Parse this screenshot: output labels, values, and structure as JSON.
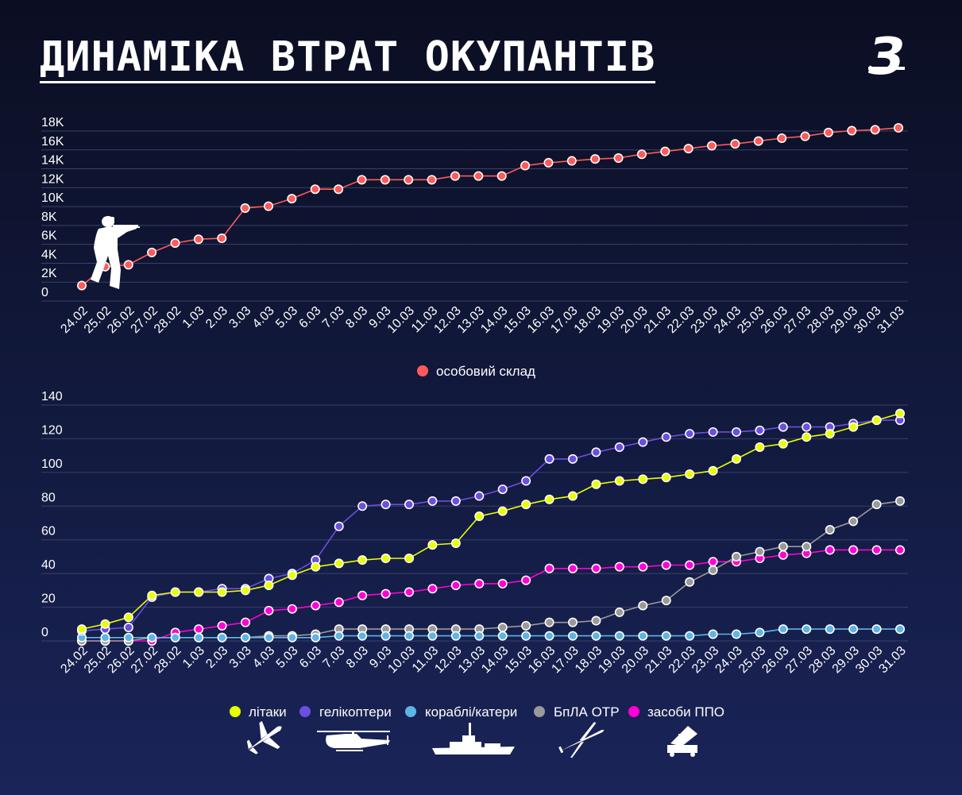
{
  "title": "ДИНАМІКА ВТРАТ ОКУПАНТІВ",
  "logo": "З",
  "colors": {
    "personnel": "#ff5a5a",
    "aircraft": "#e8ff00",
    "helicopters": "#6a4fe0",
    "ships": "#5fb4e6",
    "uav": "#9a9a9a",
    "air_defense": "#ff00d6",
    "grid": "#3a4068"
  },
  "chart_data": [
    {
      "type": "line",
      "x": [
        "24.02",
        "25.02",
        "26.02",
        "27.02",
        "28.02",
        "1.03",
        "2.03",
        "3.03",
        "4.03",
        "5.03",
        "6.03",
        "7.03",
        "8.03",
        "9.03",
        "10.03",
        "11.03",
        "12.03",
        "13.03",
        "14.03",
        "15.03",
        "16.03",
        "17.03",
        "18.03",
        "19.03",
        "20.03",
        "21.03",
        "22.03",
        "23.03",
        "24.03",
        "25.03",
        "26.03",
        "27.03",
        "28.03",
        "29.03",
        "30.03",
        "31.03"
      ],
      "ylim": [
        0,
        18000
      ],
      "yticks": [
        "0",
        "2K",
        "4K",
        "6K",
        "8K",
        "10K",
        "12K",
        "14K",
        "16K",
        "18K"
      ],
      "ytick_values": [
        0,
        2000,
        4000,
        6000,
        8000,
        10000,
        12000,
        14000,
        16000,
        18000
      ],
      "series": [
        {
          "name": "особовий склад",
          "color_key": "personnel",
          "values": [
            800,
            2800,
            3000,
            4300,
            5300,
            5700,
            5800,
            9000,
            9200,
            10000,
            11000,
            11000,
            12000,
            12000,
            12000,
            12000,
            12400,
            12400,
            12400,
            13500,
            13800,
            14000,
            14200,
            14300,
            14700,
            15000,
            15300,
            15600,
            15800,
            16100,
            16400,
            16600,
            17000,
            17200,
            17300,
            17500
          ]
        }
      ]
    },
    {
      "type": "line",
      "x": [
        "24.02",
        "25.02",
        "26.02",
        "27.02",
        "28.02",
        "1.03",
        "2.03",
        "3.03",
        "4.03",
        "5.03",
        "6.03",
        "7.03",
        "8.03",
        "9.03",
        "10.03",
        "11.03",
        "12.03",
        "13.03",
        "14.03",
        "15.03",
        "16.03",
        "17.03",
        "18.03",
        "19.03",
        "20.03",
        "21.03",
        "22.03",
        "23.03",
        "24.03",
        "25.03",
        "26.03",
        "27.03",
        "28.03",
        "29.03",
        "30.03",
        "31.03"
      ],
      "ylim": [
        0,
        140
      ],
      "yticks": [
        "0",
        "20",
        "40",
        "60",
        "80",
        "100",
        "120",
        "140"
      ],
      "ytick_values": [
        0,
        20,
        40,
        60,
        80,
        100,
        120,
        140
      ],
      "series": [
        {
          "name": "засоби ППО",
          "color_key": "air_defense",
          "values": [
            0,
            0,
            0,
            0,
            5,
            7,
            9,
            11,
            18,
            19,
            21,
            23,
            27,
            28,
            29,
            31,
            33,
            34,
            34,
            36,
            43,
            43,
            43,
            44,
            44,
            45,
            45,
            47,
            47,
            49,
            51,
            52,
            54,
            54,
            54,
            54
          ]
        },
        {
          "name": "БпЛА ОТР",
          "color_key": "uav",
          "values": [
            0,
            0,
            0,
            2,
            2,
            2,
            2,
            2,
            3,
            3,
            4,
            7,
            7,
            7,
            7,
            7,
            7,
            7,
            8,
            9,
            11,
            11,
            12,
            17,
            21,
            24,
            35,
            42,
            50,
            53,
            56,
            56,
            66,
            71,
            81,
            83
          ]
        },
        {
          "name": "кораблі/катери",
          "color_key": "ships",
          "values": [
            2,
            2,
            2,
            2,
            2,
            2,
            2,
            2,
            2,
            2,
            2,
            3,
            3,
            3,
            3,
            3,
            3,
            3,
            3,
            3,
            3,
            3,
            3,
            3,
            3,
            3,
            3,
            4,
            4,
            5,
            7,
            7,
            7,
            7,
            7,
            7
          ]
        },
        {
          "name": "гелікоптери",
          "color_key": "helicopters",
          "values": [
            6,
            7,
            8,
            26,
            29,
            29,
            31,
            31,
            37,
            40,
            48,
            68,
            80,
            81,
            81,
            83,
            83,
            86,
            90,
            95,
            108,
            108,
            112,
            115,
            118,
            121,
            123,
            124,
            124,
            125,
            127,
            127,
            127,
            129,
            131,
            131
          ]
        },
        {
          "name": "літаки",
          "color_key": "aircraft",
          "values": [
            7,
            10,
            14,
            27,
            29,
            29,
            29,
            30,
            33,
            39,
            44,
            46,
            48,
            49,
            49,
            57,
            58,
            74,
            77,
            81,
            84,
            86,
            93,
            95,
            96,
            97,
            99,
            101,
            108,
            115,
            117,
            121,
            123,
            127,
            131,
            135
          ]
        }
      ]
    }
  ],
  "legend_bottom": [
    {
      "label": "літаки",
      "color_key": "aircraft",
      "icon": "plane-icon"
    },
    {
      "label": "гелікоптери",
      "color_key": "helicopters",
      "icon": "helicopter-icon"
    },
    {
      "label": "кораблі/катери",
      "color_key": "ships",
      "icon": "ship-icon"
    },
    {
      "label": "БпЛА ОТР",
      "color_key": "uav",
      "icon": "uav-icon"
    },
    {
      "label": "засоби ППО",
      "color_key": "air_defense",
      "icon": "air-defense-icon"
    }
  ]
}
